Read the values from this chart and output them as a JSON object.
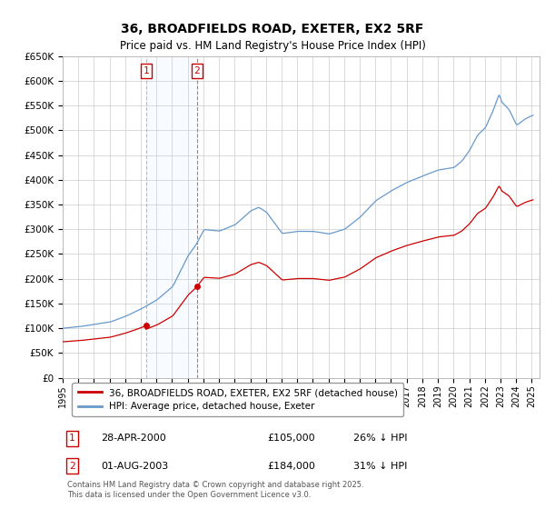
{
  "title": "36, BROADFIELDS ROAD, EXETER, EX2 5RF",
  "subtitle": "Price paid vs. HM Land Registry's House Price Index (HPI)",
  "ylabel_ticks": [
    "£0",
    "£50K",
    "£100K",
    "£150K",
    "£200K",
    "£250K",
    "£300K",
    "£350K",
    "£400K",
    "£450K",
    "£500K",
    "£550K",
    "£600K",
    "£650K"
  ],
  "ytick_values": [
    0,
    50000,
    100000,
    150000,
    200000,
    250000,
    300000,
    350000,
    400000,
    450000,
    500000,
    550000,
    600000,
    650000
  ],
  "legend_line1": "36, BROADFIELDS ROAD, EXETER, EX2 5RF (detached house)",
  "legend_line2": "HPI: Average price, detached house, Exeter",
  "footnote": "Contains HM Land Registry data © Crown copyright and database right 2025.\nThis data is licensed under the Open Government Licence v3.0.",
  "sale1_label": "1",
  "sale1_date": "28-APR-2000",
  "sale1_price": "£105,000",
  "sale1_hpi": "26% ↓ HPI",
  "sale1_year": 2000.33,
  "sale1_value": 105000,
  "sale2_label": "2",
  "sale2_date": "01-AUG-2003",
  "sale2_price": "£184,000",
  "sale2_hpi": "31% ↓ HPI",
  "sale2_year": 2003.58,
  "sale2_value": 184000,
  "line_color_red": "#cc0000",
  "line_color_blue": "#6699cc",
  "shading_color": "#ddeeff",
  "grid_color": "#cccccc",
  "background_color": "#ffffff",
  "xmin": 1995,
  "xmax": 2025.5,
  "ymin": 0,
  "ymax": 650000
}
